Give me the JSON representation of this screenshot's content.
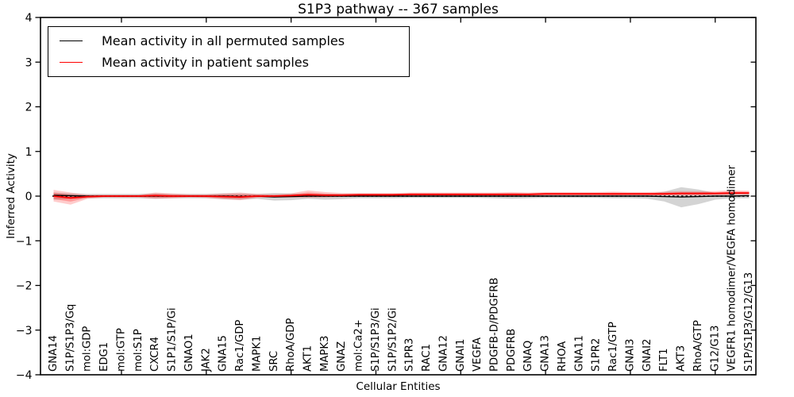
{
  "chart_data": {
    "type": "line",
    "title": "S1P3 pathway -- 367 samples",
    "xlabel": "Cellular Entities",
    "ylabel": "Inferred Activity",
    "ylim": [
      -4,
      4
    ],
    "yticks": [
      -4,
      -3,
      -2,
      -1,
      0,
      1,
      2,
      3,
      4
    ],
    "major_xtick_values": [
      5,
      10,
      15,
      20,
      25,
      30,
      35,
      40
    ],
    "grid": false,
    "legend_position": "upper left",
    "zero_reference_line": {
      "y": 0,
      "style": "dotted",
      "color": "#000000"
    },
    "categories": [
      "GNA14",
      "S1P/S1P3/Gq",
      "mol:GDP",
      "EDG1",
      "mol:GTP",
      "mol:S1P",
      "CXCR4",
      "S1P1/S1P/Gi",
      "GNAO1",
      "JAK2",
      "GNA15",
      "Rac1/GDP",
      "MAPK1",
      "SRC",
      "RhoA/GDP",
      "AKT1",
      "MAPK3",
      "GNAZ",
      "mol:Ca2+",
      "S1P/S1P3/Gi",
      "S1P/S1P2/Gi",
      "S1PR3",
      "RAC1",
      "GNA12",
      "GNAI1",
      "VEGFA",
      "PDGFB-D/PDGFRB",
      "PDGFRB",
      "GNAQ",
      "GNA13",
      "RHOA",
      "GNA11",
      "S1PR2",
      "Rac1/GTP",
      "GNAI3",
      "GNAI2",
      "FLT1",
      "AKT3",
      "RhoA/GTP",
      "G12/G13",
      "VEGFR1 homodimer/VEGFA homodimer",
      "S1P/S1P3/G12/G13"
    ],
    "series": [
      {
        "name": "Mean activity in all permuted samples",
        "color": "#000000",
        "line_width": 1.4,
        "band_color": "rgba(0,0,0,0.17)",
        "values": [
          0.02,
          0.01,
          0,
          0,
          0,
          0,
          0,
          0,
          0,
          0,
          0,
          -0.01,
          0,
          -0.02,
          -0.01,
          0,
          0,
          0,
          0,
          0,
          0,
          0,
          0,
          0,
          0,
          0,
          0,
          0,
          0,
          0,
          0,
          0,
          0,
          0,
          0,
          0,
          -0.01,
          -0.02,
          -0.01,
          0,
          0,
          0.01
        ],
        "band_upper": [
          0.08,
          0.06,
          0.05,
          0.05,
          0.05,
          0.05,
          0.06,
          0.05,
          0.05,
          0.05,
          0.06,
          0.06,
          0.05,
          0.07,
          0.06,
          0.05,
          0.05,
          0.05,
          0.04,
          0.04,
          0.04,
          0.04,
          0.04,
          0.04,
          0.04,
          0.04,
          0.04,
          0.05,
          0.04,
          0.04,
          0.04,
          0.04,
          0.04,
          0.05,
          0.04,
          0.05,
          0.1,
          0.2,
          0.15,
          0.07,
          0.05,
          0.05
        ],
        "band_lower": [
          -0.08,
          -0.06,
          -0.05,
          -0.05,
          -0.05,
          -0.05,
          -0.06,
          -0.05,
          -0.05,
          -0.05,
          -0.07,
          -0.08,
          -0.06,
          -0.1,
          -0.09,
          -0.06,
          -0.08,
          -0.07,
          -0.05,
          -0.05,
          -0.05,
          -0.04,
          -0.04,
          -0.04,
          -0.04,
          -0.04,
          -0.05,
          -0.06,
          -0.05,
          -0.04,
          -0.04,
          -0.04,
          -0.04,
          -0.05,
          -0.05,
          -0.06,
          -0.12,
          -0.25,
          -0.18,
          -0.08,
          -0.05,
          -0.05
        ]
      },
      {
        "name": "Mean activity in patient samples",
        "color": "#ff0000",
        "line_width": 1.8,
        "band_color": "rgba(255,0,0,0.20)",
        "band_inner_color": "rgba(255,0,0,0.25)",
        "values": [
          0.0,
          -0.04,
          -0.01,
          0,
          0,
          0,
          0.01,
          0,
          0,
          0,
          -0.01,
          -0.02,
          0,
          0,
          0.01,
          0.03,
          0.02,
          0.02,
          0.03,
          0.03,
          0.03,
          0.04,
          0.04,
          0.04,
          0.04,
          0.04,
          0.04,
          0.04,
          0.04,
          0.05,
          0.05,
          0.05,
          0.05,
          0.05,
          0.05,
          0.05,
          0.05,
          0.06,
          0.06,
          0.06,
          0.07,
          0.07
        ],
        "band_upper": [
          0.14,
          0.08,
          0.03,
          0.03,
          0.03,
          0.03,
          0.08,
          0.06,
          0.04,
          0.04,
          0.06,
          0.08,
          0.05,
          0.04,
          0.06,
          0.13,
          0.09,
          0.07,
          0.07,
          0.07,
          0.07,
          0.08,
          0.08,
          0.08,
          0.08,
          0.08,
          0.08,
          0.09,
          0.08,
          0.09,
          0.09,
          0.09,
          0.09,
          0.1,
          0.09,
          0.09,
          0.1,
          0.11,
          0.11,
          0.11,
          0.13,
          0.12
        ],
        "band_lower": [
          -0.12,
          -0.19,
          -0.06,
          -0.03,
          -0.03,
          -0.03,
          -0.06,
          -0.05,
          -0.03,
          -0.04,
          -0.07,
          -0.09,
          -0.04,
          -0.03,
          -0.03,
          -0.04,
          -0.03,
          -0.02,
          -0.01,
          -0.01,
          -0.01,
          0.0,
          0.0,
          0.0,
          0.0,
          0.0,
          0.0,
          0.0,
          0.0,
          0.01,
          0.01,
          0.01,
          0.01,
          0.0,
          0.01,
          0.01,
          0.01,
          0.01,
          0.01,
          0.02,
          0.02,
          0.03
        ]
      }
    ]
  }
}
